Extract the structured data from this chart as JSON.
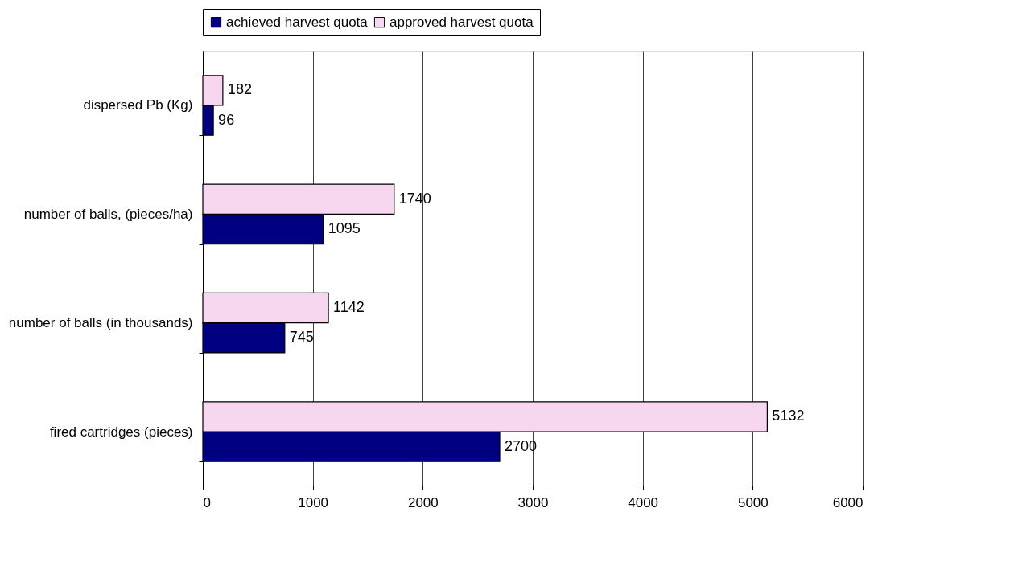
{
  "chart_data": {
    "type": "bar",
    "orientation": "horizontal",
    "categories": [
      "dispersed Pb (Kg)",
      "number of balls, (pieces/ha)",
      "number of balls (in thousands)",
      "fired cartridges (pieces)"
    ],
    "series": [
      {
        "name": "achieved harvest quota",
        "color": "#000080",
        "values": [
          96,
          1095,
          745,
          2700
        ]
      },
      {
        "name": "approved harvest quota",
        "color": "#f7d6f0",
        "values": [
          182,
          1740,
          1142,
          5132
        ]
      }
    ],
    "xlim": [
      0,
      6000
    ],
    "xticks": [
      0,
      1000,
      2000,
      3000,
      4000,
      5000,
      6000
    ],
    "grid": "x",
    "legend": "top",
    "data_labels": true
  }
}
